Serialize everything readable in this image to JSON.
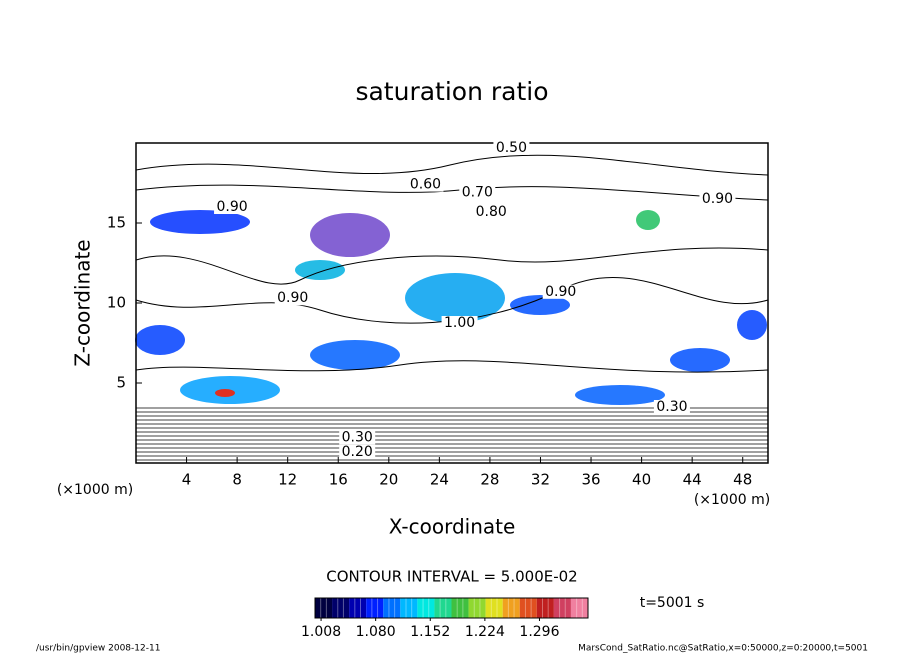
{
  "chart_data": {
    "type": "contour",
    "title": "saturation ratio",
    "x_label": "X-coordinate",
    "y_label": "Z-coordinate",
    "x_unit": "(×1000 m)",
    "y_unit": "(×1000 m)",
    "xlim": [
      0,
      50
    ],
    "ylim": [
      0,
      20
    ],
    "xticks": [
      4,
      8,
      12,
      16,
      20,
      24,
      28,
      32,
      36,
      40,
      44,
      48
    ],
    "yticks": [
      5,
      10,
      15
    ],
    "contour_labels": [
      {
        "x": 29.7,
        "y": 19.7,
        "label": "0.50"
      },
      {
        "x": 22.9,
        "y": 17.4,
        "label": "0.60"
      },
      {
        "x": 27.0,
        "y": 16.9,
        "label": "0.70"
      },
      {
        "x": 28.1,
        "y": 15.7,
        "label": "0.80"
      },
      {
        "x": 7.6,
        "y": 16.0,
        "label": "0.90"
      },
      {
        "x": 46.0,
        "y": 16.5,
        "label": "0.90"
      },
      {
        "x": 12.4,
        "y": 10.3,
        "label": "0.90"
      },
      {
        "x": 33.6,
        "y": 10.7,
        "label": "0.90"
      },
      {
        "x": 25.6,
        "y": 8.75,
        "label": "1.00"
      },
      {
        "x": 42.4,
        "y": 3.5,
        "label": "0.30"
      },
      {
        "x": 17.5,
        "y": 1.6,
        "label": "0.30"
      },
      {
        "x": 17.5,
        "y": 0.7,
        "label": "0.20"
      }
    ],
    "contour_interval": "CONTOUR INTERVAL = 5.000E-02",
    "time_label": "t=5001 s",
    "colorbar": {
      "lim": [
        1.0,
        1.36
      ],
      "ticks": [
        {
          "value": 1.008,
          "label": "1.008"
        },
        {
          "value": 1.08,
          "label": "1.080"
        },
        {
          "value": 1.152,
          "label": "1.152"
        },
        {
          "value": 1.224,
          "label": "1.224"
        },
        {
          "value": 1.296,
          "label": "1.296"
        }
      ],
      "colors": [
        "#000040",
        "#00006a",
        "#0000b0",
        "#0020ff",
        "#0070ff",
        "#00b8ff",
        "#00e8e0",
        "#20d890",
        "#40c040",
        "#90d830",
        "#e0e020",
        "#f0a020",
        "#e05020",
        "#c02020",
        "#d04060",
        "#f080a0"
      ]
    },
    "footer_left": "/usr/bin/gpview   2008-12-11",
    "footer_right": "MarsCond_SatRatio.nc@SatRatio,x=0:50000,z=0:20000,t=5001"
  }
}
